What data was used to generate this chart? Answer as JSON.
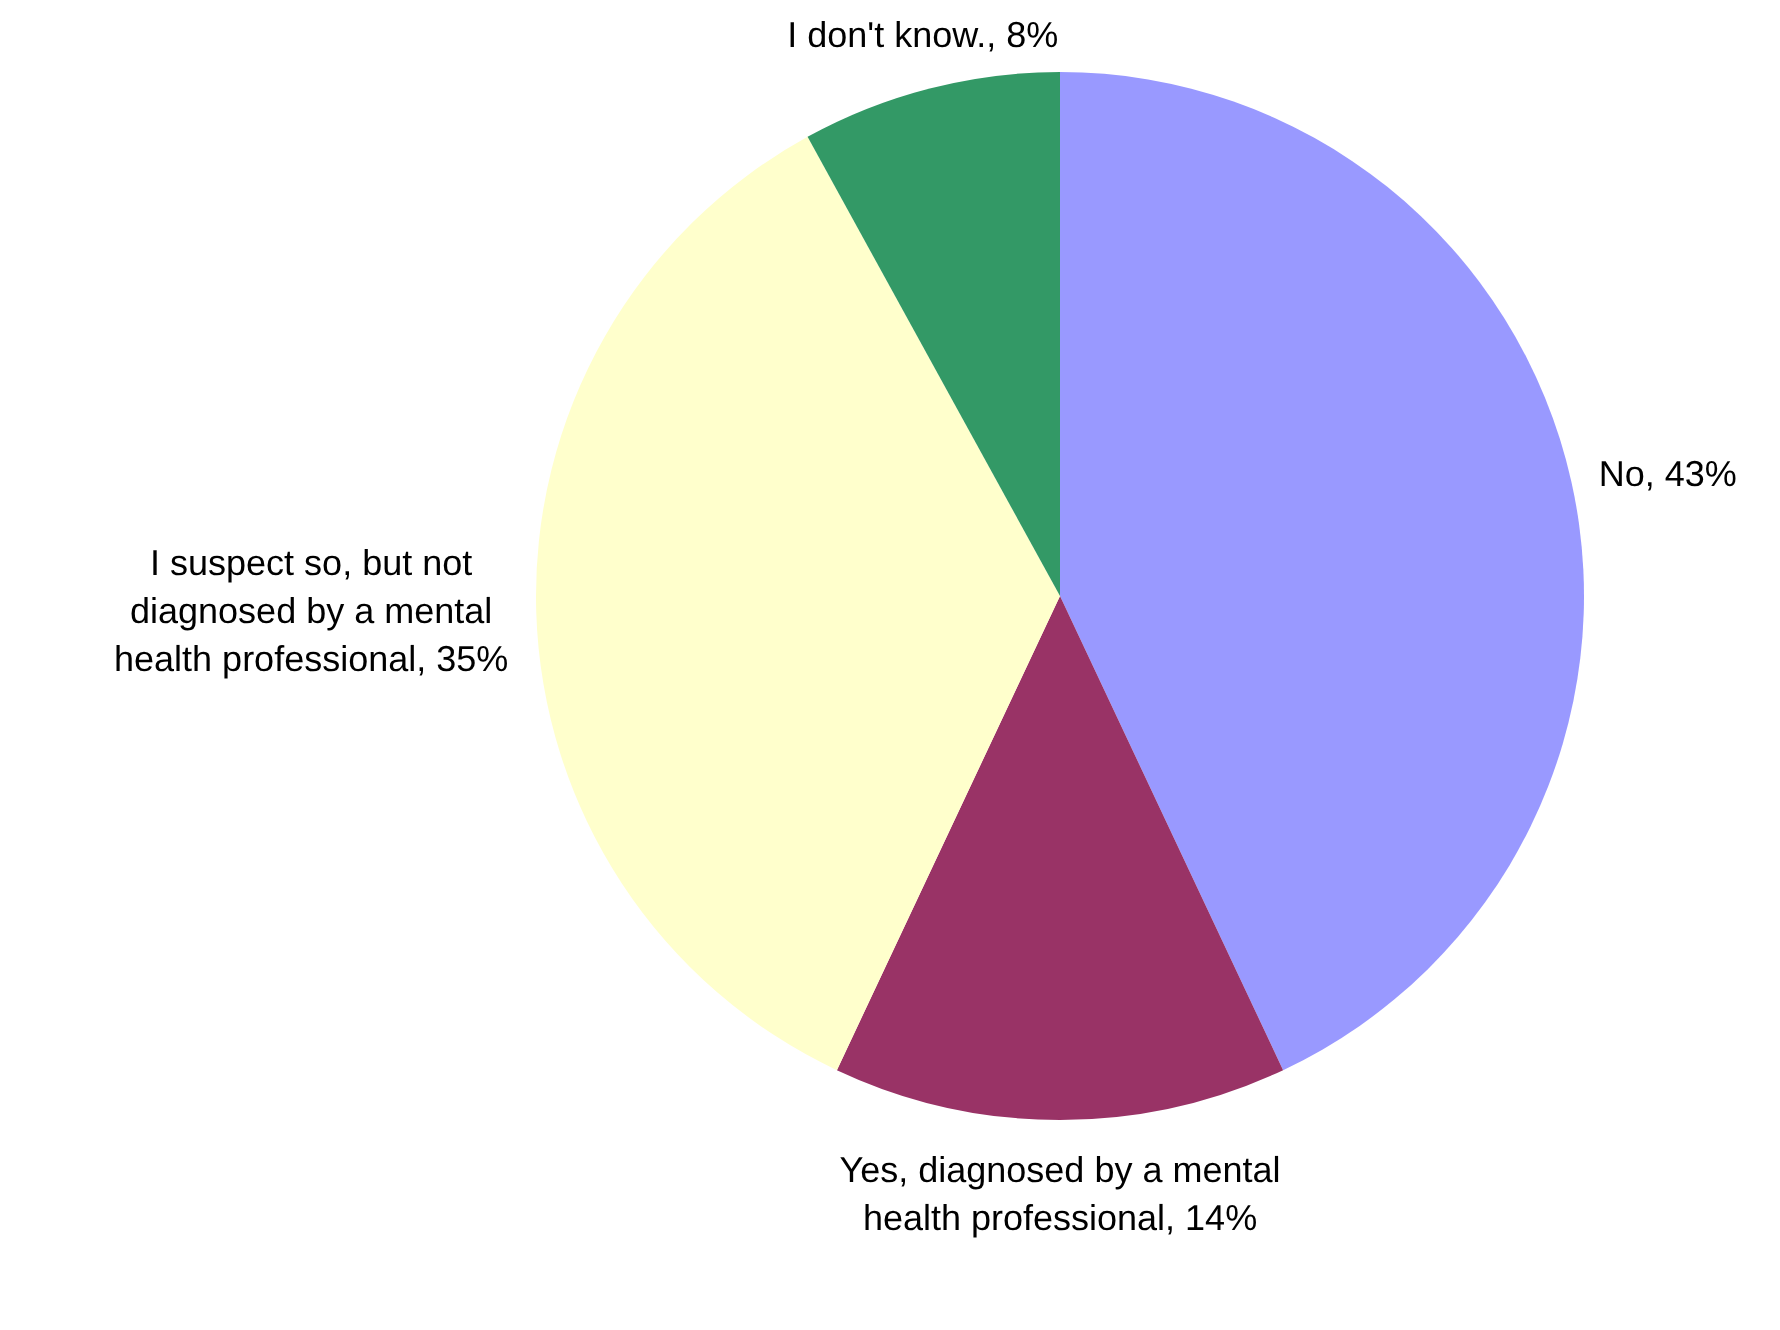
{
  "chart_data": {
    "type": "pie",
    "categories": [
      "No",
      "Yes, diagnosed by a mental health professional",
      "I suspect so, but not diagnosed by a mental health professional",
      "I don't know."
    ],
    "values": [
      43,
      14,
      35,
      8
    ],
    "colors": [
      "#9999ff",
      "#993366",
      "#ffffcc",
      "#339966"
    ],
    "value_labels": [
      "43%",
      "14%",
      "35%",
      "8%"
    ],
    "legend": false
  }
}
